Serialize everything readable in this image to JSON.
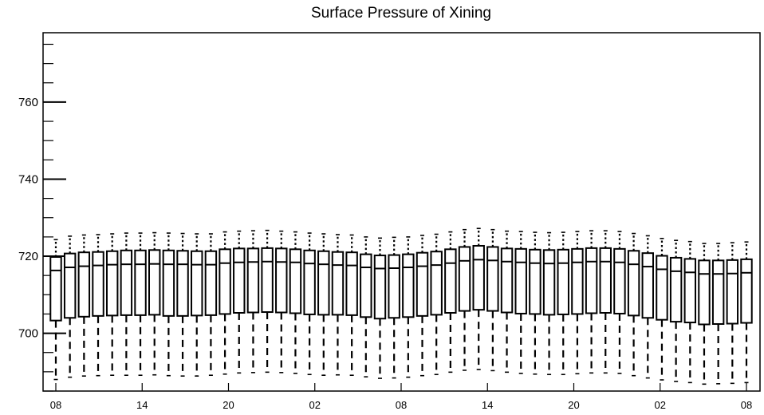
{
  "chart_data": {
    "type": "box",
    "title": "Surface Pressure of Xining",
    "xlabel": "",
    "ylabel": "",
    "ylim": [
      685,
      778
    ],
    "y_ticks": [
      700,
      720,
      740,
      760
    ],
    "x_ticks": [
      "08",
      "14",
      "20",
      "02",
      "08",
      "14",
      "20",
      "02",
      "08"
    ],
    "grid": false,
    "series": [
      {
        "median": [
          716.3,
          717.1,
          717.4,
          717.6,
          717.8,
          717.9,
          717.9,
          718.0,
          717.9,
          717.9,
          717.8,
          717.8,
          718.2,
          718.4,
          718.5,
          718.6,
          718.5,
          718.4,
          718.1,
          717.9,
          717.7,
          717.6,
          717.1,
          716.8,
          716.9,
          717.1,
          717.4,
          717.7,
          718.2,
          718.8,
          719.1,
          718.9,
          718.6,
          718.4,
          718.2,
          718.1,
          718.2,
          718.4,
          718.6,
          718.6,
          718.4,
          717.9,
          717.3,
          716.6,
          716.1,
          715.8,
          715.4,
          715.4,
          715.5,
          715.7
        ],
        "q1": [
          703.3,
          704.0,
          704.3,
          704.5,
          704.6,
          704.7,
          704.7,
          704.8,
          704.5,
          704.5,
          704.6,
          704.7,
          705.0,
          705.3,
          705.4,
          705.5,
          705.4,
          705.2,
          704.9,
          704.8,
          704.8,
          704.7,
          704.2,
          703.8,
          704.0,
          704.2,
          704.5,
          704.8,
          705.3,
          705.8,
          706.1,
          705.8,
          705.4,
          705.1,
          705.0,
          704.8,
          704.9,
          705.0,
          705.2,
          705.3,
          705.1,
          704.6,
          704.0,
          703.5,
          703.0,
          702.8,
          702.3,
          702.4,
          702.5,
          702.7
        ],
        "q3": [
          719.8,
          720.7,
          721.0,
          721.1,
          721.3,
          721.5,
          721.5,
          721.6,
          721.5,
          721.4,
          721.3,
          721.3,
          721.8,
          722.0,
          722.0,
          722.1,
          722.0,
          721.8,
          721.5,
          721.3,
          721.1,
          721.0,
          720.5,
          720.2,
          720.3,
          720.5,
          720.9,
          721.2,
          721.8,
          722.4,
          722.7,
          722.4,
          722.0,
          721.9,
          721.7,
          721.6,
          721.7,
          721.9,
          722.1,
          722.1,
          721.9,
          721.4,
          720.8,
          720.1,
          719.6,
          719.3,
          718.9,
          718.9,
          719.0,
          719.2
        ],
        "lower_whisker": [
          688.0,
          688.6,
          688.9,
          689.0,
          689.1,
          689.1,
          689.1,
          689.2,
          689.0,
          688.9,
          688.9,
          689.1,
          689.4,
          689.7,
          689.8,
          689.9,
          689.8,
          689.6,
          689.3,
          689.1,
          689.2,
          689.1,
          688.7,
          688.3,
          688.4,
          688.6,
          689.0,
          689.3,
          689.9,
          690.4,
          690.6,
          690.3,
          689.9,
          689.6,
          689.4,
          689.3,
          689.3,
          689.5,
          689.7,
          689.7,
          689.6,
          689.0,
          688.4,
          687.9,
          687.5,
          687.2,
          686.8,
          686.9,
          687.0,
          687.2
        ],
        "upper_whisker": [
          724.3,
          725.2,
          725.5,
          725.6,
          725.8,
          726.0,
          726.0,
          726.1,
          726.0,
          725.9,
          725.8,
          725.8,
          726.3,
          726.5,
          726.6,
          726.7,
          726.5,
          726.3,
          726.0,
          725.8,
          725.6,
          725.5,
          725.0,
          724.7,
          724.9,
          725.0,
          725.4,
          725.7,
          726.3,
          726.9,
          727.2,
          726.9,
          726.5,
          726.4,
          726.2,
          726.1,
          726.2,
          726.4,
          726.6,
          726.6,
          726.4,
          725.9,
          725.3,
          724.6,
          724.1,
          723.8,
          723.3,
          723.3,
          723.5,
          723.7
        ]
      }
    ]
  }
}
